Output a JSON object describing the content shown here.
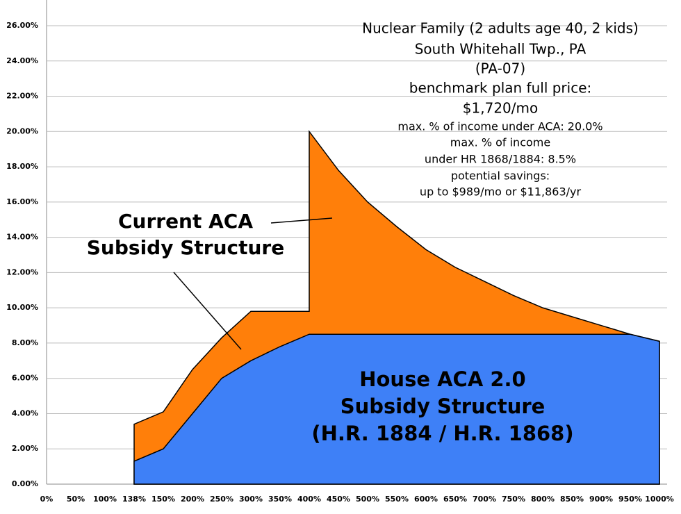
{
  "chart_data": {
    "type": "area",
    "categories": [
      "0%",
      "50%",
      "100%",
      "138%",
      "150%",
      "200%",
      "250%",
      "300%",
      "350%",
      null,
      "400%",
      "450%",
      "500%",
      "550%",
      "600%",
      "650%",
      "700%",
      "750%",
      "800%",
      "850%",
      "900%",
      "950%",
      "1000%"
    ],
    "series": [
      {
        "name": [
          "Current ACA",
          "Subsidy Structure"
        ],
        "color": "#ff7f0a",
        "values": [
          null,
          null,
          null,
          3.4,
          4.1,
          6.5,
          8.3,
          9.8,
          9.8,
          9.8,
          20.0,
          17.8,
          16.0,
          14.6,
          13.3,
          12.3,
          11.5,
          10.7,
          10.0,
          9.5,
          9.0,
          8.5,
          8.1
        ]
      },
      {
        "name": [
          "House ACA 2.0",
          "Subsidy Structure",
          "(H.R. 1884 / H.R. 1868)"
        ],
        "color": "#3e80f7",
        "values": [
          null,
          null,
          null,
          1.3,
          2.0,
          4.0,
          6.0,
          7.0,
          7.8,
          8.5,
          8.5,
          8.5,
          8.5,
          8.5,
          8.5,
          8.5,
          8.5,
          8.5,
          8.5,
          8.5,
          8.5,
          8.5,
          8.1
        ]
      }
    ],
    "ylim": [
      0,
      26
    ],
    "yticks": [
      {
        "value": 0,
        "label": "0.00%"
      },
      {
        "value": 2,
        "label": "2.00%"
      },
      {
        "value": 4,
        "label": "4.00%"
      },
      {
        "value": 6,
        "label": "6.00%"
      },
      {
        "value": 8,
        "label": "8.00%"
      },
      {
        "value": 10,
        "label": "10.00%"
      },
      {
        "value": 12,
        "label": "12.00%"
      },
      {
        "value": 14,
        "label": "14.00%"
      },
      {
        "value": 16,
        "label": "16.00%"
      },
      {
        "value": 18,
        "label": "18.00%"
      },
      {
        "value": 20,
        "label": "20.00%"
      },
      {
        "value": 22,
        "label": "22.00%"
      },
      {
        "value": 24,
        "label": "24.00%"
      },
      {
        "value": 26,
        "label": "26.00%"
      }
    ],
    "grid": true,
    "annotations": [
      "Nuclear Family (2 adults age 40, 2 kids)",
      "South Whitehall Twp., PA",
      "(PA-07)",
      "benchmark plan full price:",
      "$1,720/mo",
      "max. % of income under ACA: 20.0%",
      "max. % of income",
      "under HR 1868/1884: 8.5%",
      "potential savings:",
      "up to $989/mo or $11,863/yr"
    ]
  }
}
